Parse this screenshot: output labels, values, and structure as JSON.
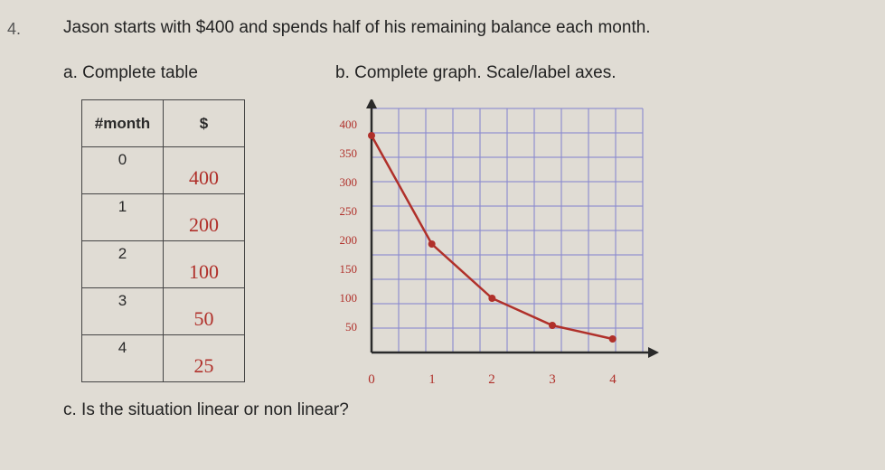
{
  "question_number": "4.",
  "prompt": "Jason starts with $400 and spends half of his remaining balance each month.",
  "part_a": {
    "label": "a.   Complete table",
    "headers": {
      "col1": "#month",
      "col2": "$"
    },
    "rows": [
      {
        "month": "0",
        "value": "400"
      },
      {
        "month": "1",
        "value": "200"
      },
      {
        "month": "2",
        "value": "100"
      },
      {
        "month": "3",
        "value": "50"
      },
      {
        "month": "4",
        "value": "25"
      }
    ]
  },
  "part_b": {
    "label": "b.  Complete graph. Scale/label axes.",
    "chart": {
      "type": "line",
      "grid_color": "#8a8ad0",
      "grid_opacity": 0.55,
      "axis_color": "#2a2a2a",
      "background_color": "#e0dcd4",
      "line_color": "#b0302a",
      "point_color": "#b0302a",
      "xlim": [
        0,
        4.5
      ],
      "ylim": [
        0,
        450
      ],
      "y_ticks": [
        "400",
        "350",
        "300",
        "250",
        "200",
        "150",
        "100",
        "50"
      ],
      "x_ticks": [
        "0",
        "1",
        "2",
        "3",
        "4"
      ],
      "points": [
        {
          "x": 0,
          "y": 400
        },
        {
          "x": 1,
          "y": 200
        },
        {
          "x": 2,
          "y": 100
        },
        {
          "x": 3,
          "y": 50
        },
        {
          "x": 4,
          "y": 25
        }
      ]
    }
  },
  "part_c": {
    "label": "c.  Is the situation linear or non linear?"
  }
}
